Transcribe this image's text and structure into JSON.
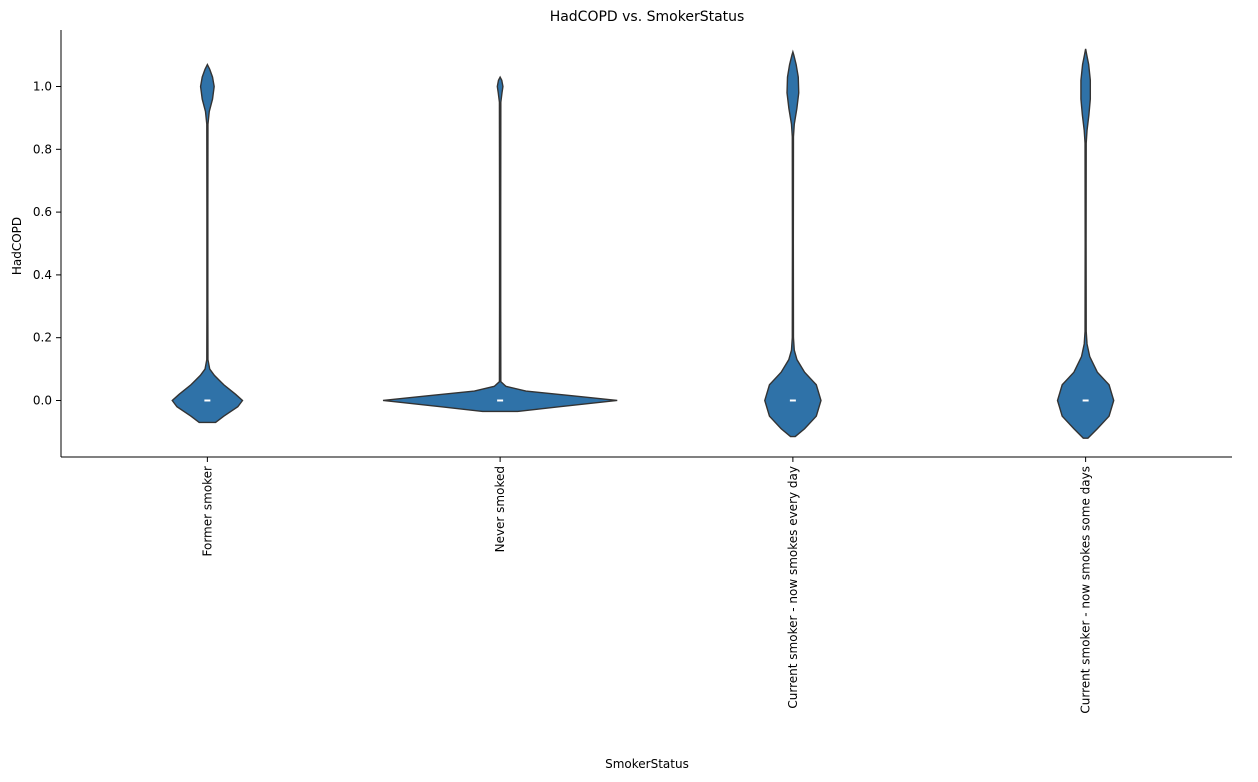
{
  "chart_data": {
    "type": "violin",
    "title": "HadCOPD vs. SmokerStatus",
    "xlabel": "SmokerStatus",
    "ylabel": "HadCOPD",
    "ylim": [
      -0.18,
      1.18
    ],
    "yticks": [
      0.0,
      0.2,
      0.4,
      0.6,
      0.8,
      1.0
    ],
    "ytick_labels": [
      "0.0",
      "0.2",
      "0.4",
      "0.6",
      "0.8",
      "1.0"
    ],
    "grid": false,
    "color": "#2f72a8",
    "categories": [
      "Former smoker",
      "Never smoked",
      "Current smoker - now smokes every day",
      "Current smoker - now smokes some days"
    ],
    "violins": [
      {
        "category": "Former smoker",
        "median": 0.0,
        "y_min": -0.07,
        "y_max": 1.07,
        "profile": [
          [
            -0.07,
            0.07
          ],
          [
            -0.05,
            0.14
          ],
          [
            -0.02,
            0.26
          ],
          [
            0.0,
            0.3
          ],
          [
            0.02,
            0.24
          ],
          [
            0.05,
            0.14
          ],
          [
            0.08,
            0.06
          ],
          [
            0.1,
            0.02
          ],
          [
            0.13,
            0.005
          ],
          [
            0.3,
            0.004
          ],
          [
            0.6,
            0.004
          ],
          [
            0.88,
            0.005
          ],
          [
            0.92,
            0.016
          ],
          [
            0.96,
            0.044
          ],
          [
            1.0,
            0.058
          ],
          [
            1.03,
            0.044
          ],
          [
            1.055,
            0.02
          ],
          [
            1.07,
            0.0
          ]
        ]
      },
      {
        "category": "Never smoked",
        "median": 0.0,
        "y_min": -0.035,
        "y_max": 1.03,
        "profile": [
          [
            -0.035,
            0.15
          ],
          [
            -0.02,
            0.5
          ],
          [
            0.0,
            1.0
          ],
          [
            0.015,
            0.62
          ],
          [
            0.03,
            0.22
          ],
          [
            0.045,
            0.05
          ],
          [
            0.06,
            0.006
          ],
          [
            0.3,
            0.005
          ],
          [
            0.6,
            0.005
          ],
          [
            0.95,
            0.006
          ],
          [
            0.98,
            0.016
          ],
          [
            1.0,
            0.024
          ],
          [
            1.02,
            0.014
          ],
          [
            1.03,
            0.0
          ]
        ]
      },
      {
        "category": "Current smoker - now smokes every day",
        "median": 0.0,
        "y_min": -0.115,
        "y_max": 1.11,
        "profile": [
          [
            -0.115,
            0.02
          ],
          [
            -0.09,
            0.1
          ],
          [
            -0.05,
            0.2
          ],
          [
            0.0,
            0.24
          ],
          [
            0.05,
            0.2
          ],
          [
            0.09,
            0.1
          ],
          [
            0.13,
            0.035
          ],
          [
            0.16,
            0.012
          ],
          [
            0.2,
            0.005
          ],
          [
            0.5,
            0.004
          ],
          [
            0.84,
            0.005
          ],
          [
            0.88,
            0.012
          ],
          [
            0.93,
            0.034
          ],
          [
            0.98,
            0.05
          ],
          [
            1.03,
            0.046
          ],
          [
            1.07,
            0.028
          ],
          [
            1.1,
            0.008
          ],
          [
            1.11,
            0.0
          ]
        ]
      },
      {
        "category": "Current smoker - now smokes some days",
        "median": 0.0,
        "y_min": -0.12,
        "y_max": 1.12,
        "profile": [
          [
            -0.12,
            0.02
          ],
          [
            -0.09,
            0.1
          ],
          [
            -0.05,
            0.2
          ],
          [
            0.0,
            0.24
          ],
          [
            0.05,
            0.2
          ],
          [
            0.09,
            0.1
          ],
          [
            0.14,
            0.035
          ],
          [
            0.18,
            0.012
          ],
          [
            0.22,
            0.005
          ],
          [
            0.5,
            0.004
          ],
          [
            0.82,
            0.005
          ],
          [
            0.86,
            0.012
          ],
          [
            0.91,
            0.028
          ],
          [
            0.96,
            0.04
          ],
          [
            1.02,
            0.04
          ],
          [
            1.07,
            0.026
          ],
          [
            1.1,
            0.01
          ],
          [
            1.12,
            0.0
          ]
        ]
      }
    ]
  }
}
